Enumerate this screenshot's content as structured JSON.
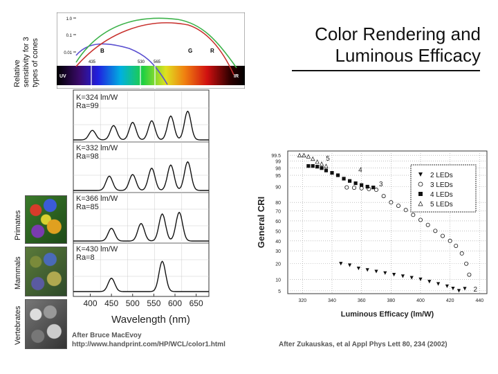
{
  "title_lines": [
    "Color Rendering and",
    "Luminous Efficacy"
  ],
  "labels": {
    "cones": [
      "Relative",
      "sensitivity for 3",
      "types of cones"
    ],
    "primates": "Primates",
    "mammals": "Mammals",
    "vertebrates": "Vertebrates"
  },
  "captions": {
    "left_line1": "After Bruce MacEvoy",
    "left_line2": "http://www.handprint.com/HP/WCL/color1.html",
    "right": "After Zukauskas, et al Appl Phys Lett 80, 234 (2002)"
  },
  "cone_chart": {
    "y_ticks": [
      "1.0",
      "0.1",
      "0.01"
    ],
    "cone_labels": [
      "B",
      "G",
      "R"
    ],
    "peak_labels": [
      "435",
      "530",
      "565"
    ],
    "end_labels": [
      "UV",
      "IR"
    ],
    "colors": {
      "B": "#5a4fd0",
      "G": "#3cb24a",
      "R": "#c8322e"
    }
  },
  "chart_data": [
    {
      "type": "line",
      "title": "",
      "xlabel": "Wavelength (nm)",
      "ylabel": "",
      "xlim": [
        360,
        680
      ],
      "x_ticks": [
        "400",
        "450",
        "500",
        "550",
        "600",
        "650"
      ],
      "panels": [
        {
          "label_k": "K=324 lm/W",
          "label_r": "Ra=99",
          "peaks": [
            {
              "x": 405,
              "h": 0.3
            },
            {
              "x": 455,
              "h": 0.45
            },
            {
              "x": 500,
              "h": 0.55
            },
            {
              "x": 545,
              "h": 0.6
            },
            {
              "x": 590,
              "h": 0.75
            },
            {
              "x": 630,
              "h": 0.9
            }
          ]
        },
        {
          "label_k": "K=332 lm/W",
          "label_r": "Ra=98",
          "peaks": [
            {
              "x": 445,
              "h": 0.45
            },
            {
              "x": 500,
              "h": 0.5
            },
            {
              "x": 545,
              "h": 0.7
            },
            {
              "x": 590,
              "h": 0.8
            },
            {
              "x": 630,
              "h": 0.9
            }
          ]
        },
        {
          "label_k": "K=366 lm/W",
          "label_r": "Ra=85",
          "peaks": [
            {
              "x": 450,
              "h": 0.4
            },
            {
              "x": 520,
              "h": 0.55
            },
            {
              "x": 570,
              "h": 0.85
            },
            {
              "x": 610,
              "h": 0.9
            }
          ]
        },
        {
          "label_k": "K=430 lm/W",
          "label_r": "Ra=8",
          "peaks": [
            {
              "x": 450,
              "h": 0.42
            },
            {
              "x": 570,
              "h": 0.95
            }
          ]
        }
      ]
    },
    {
      "type": "scatter",
      "title": "",
      "xlabel": "Luminous Efficacy (lm/W)",
      "ylabel": "General CRI",
      "xlim": [
        310,
        445
      ],
      "x_ticks": [
        320,
        340,
        360,
        380,
        400,
        420,
        440
      ],
      "y_ticks": [
        "5",
        "10",
        "20",
        "30",
        "40",
        "50",
        "60",
        "70",
        "80",
        "90",
        "95",
        "98",
        "99",
        "99.5"
      ],
      "legend_position": "top-right",
      "annotations": [
        "2",
        "3",
        "4",
        "5"
      ],
      "series": [
        {
          "name": "2 LEDs",
          "marker": "triangle-down",
          "points": [
            [
              346,
              20
            ],
            [
              352,
              19
            ],
            [
              358,
              17
            ],
            [
              364,
              16
            ],
            [
              370,
              15
            ],
            [
              376,
              14
            ],
            [
              382,
              13
            ],
            [
              388,
              12
            ],
            [
              394,
              11
            ],
            [
              400,
              10
            ],
            [
              406,
              9
            ],
            [
              412,
              8
            ],
            [
              418,
              7
            ],
            [
              422,
              6
            ],
            [
              426,
              5
            ],
            [
              430,
              3.5
            ]
          ]
        },
        {
          "name": "3 LEDs",
          "marker": "circle",
          "points": [
            [
              350,
              89.5
            ],
            [
              355,
              89.3
            ],
            [
              360,
              89
            ],
            [
              365,
              88.5
            ],
            [
              370,
              88
            ],
            [
              375,
              84
            ],
            [
              380,
              80
            ],
            [
              385,
              76
            ],
            [
              390,
              71
            ],
            [
              395,
              66
            ],
            [
              400,
              61
            ],
            [
              405,
              56
            ],
            [
              410,
              50
            ],
            [
              415,
              45
            ],
            [
              420,
              40
            ],
            [
              424,
              35
            ],
            [
              428,
              28
            ],
            [
              431,
              20
            ],
            [
              433,
              13
            ]
          ]
        },
        {
          "name": "4 LEDs",
          "marker": "square",
          "points": [
            [
              324,
              98.3
            ],
            [
              327,
              98.3
            ],
            [
              330,
              98.2
            ],
            [
              333,
              98
            ],
            [
              336,
              97
            ],
            [
              340,
              96
            ],
            [
              344,
              95
            ],
            [
              348,
              93.5
            ],
            [
              352,
              92.5
            ],
            [
              356,
              91.5
            ],
            [
              360,
              90.7
            ],
            [
              364,
              90
            ],
            [
              368,
              89.5
            ]
          ]
        },
        {
          "name": "5 LEDs",
          "marker": "triangle-up",
          "points": [
            [
              318,
              99.5
            ],
            [
              321,
              99.5
            ],
            [
              324,
              99.4
            ],
            [
              327,
              99.2
            ],
            [
              330,
              98.9
            ],
            [
              333,
              98.6
            ],
            [
              336,
              98.3
            ]
          ]
        }
      ]
    }
  ]
}
